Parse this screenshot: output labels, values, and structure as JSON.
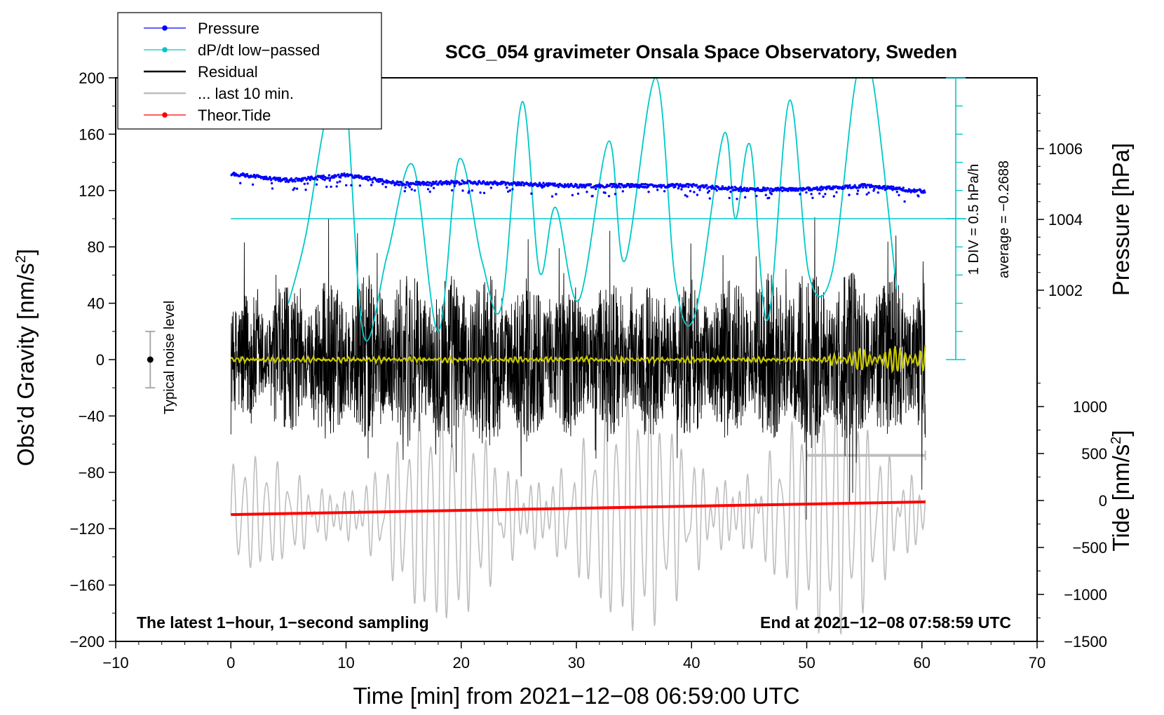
{
  "chart_data": {
    "type": "line",
    "title": "SCG_054 gravimeter Onsala Space Observatory, Sweden",
    "xlabel": "Time [min] from 2021−12−08 06:59:00 UTC",
    "ylabel_main": "Obs’d Gravity [nm/s",
    "ylabel_pressure": "Pressure [hPa]",
    "ylabel_tide": "Tide [nm/s",
    "superscript": "2",
    "ylabel_tide_close": "]",
    "ylabel_main_close": "]",
    "xlim": [
      -10,
      70
    ],
    "ylim_gravity": [
      -200,
      200
    ],
    "pressure_ylim": [
      1000,
      1008
    ],
    "tide_ylim": [
      -1500,
      1500
    ],
    "x_ticks": [
      -10,
      0,
      10,
      20,
      30,
      40,
      50,
      60,
      70
    ],
    "x_tick_labels": [
      "−10",
      "0",
      "10",
      "20",
      "30",
      "40",
      "50",
      "60",
      "70"
    ],
    "y_ticks": [
      -200,
      -160,
      -120,
      -80,
      -40,
      0,
      40,
      80,
      120,
      160,
      200
    ],
    "y_tick_labels": [
      "−200",
      "−160",
      "−120",
      "−80",
      "−40",
      "0",
      "40",
      "80",
      "120",
      "160",
      "200"
    ],
    "pressure_ticks": [
      1002,
      1004,
      1006
    ],
    "pressure_tick_labels": [
      "1002",
      "1004",
      "1006"
    ],
    "tide_ticks": [
      -1500,
      -1000,
      -500,
      0,
      500,
      1000
    ],
    "tide_tick_labels": [
      "−1500",
      "−1000",
      "−500",
      "0",
      "500",
      "1000"
    ],
    "legend": [
      {
        "label": "Pressure",
        "color": "#0000ff",
        "marker": true
      },
      {
        "label": "dP/dt low−passed",
        "color": "#00c8c8",
        "marker": true
      },
      {
        "label": "Residual",
        "color": "#000000",
        "marker": false
      },
      {
        "label": "... last 10 min.",
        "color": "#bebebe",
        "marker": false
      },
      {
        "label": "Theor.Tide",
        "color": "#ff0000",
        "marker": true
      }
    ],
    "dpdt_annotation": [
      "1 DIV = 0.5 hPa/h",
      "average = −0.2688"
    ],
    "noise_label": "Typical noise level",
    "noise_bar": {
      "x": -7,
      "center": 0,
      "half_range": 20
    },
    "bottom_left_text": "The latest 1−hour, 1−second sampling",
    "bottom_right_text": "End at 2021−12−08 07:58:59 UTC",
    "colors": {
      "pressure": "#0000ff",
      "dpdt": "#00c8c8",
      "residual": "#000000",
      "smoothed": "#c8c800",
      "last10": "#bebebe",
      "tide": "#ff0000"
    },
    "series": {
      "pressure": {
        "name": "Pressure",
        "unit": "hPa",
        "x": [
          0,
          5,
          10,
          15,
          20,
          25,
          30,
          35,
          40,
          45,
          50,
          55,
          60
        ],
        "values": [
          1005.3,
          1005.1,
          1005.25,
          1005.0,
          1005.05,
          1005.0,
          1004.95,
          1004.95,
          1004.95,
          1004.85,
          1004.85,
          1004.95,
          1004.8
        ]
      },
      "dpdt": {
        "name": "dP/dt low−passed",
        "x": [
          5,
          6.5,
          8.2,
          9.8,
          11.5,
          13.6,
          15.8,
          18,
          19.8,
          21.8,
          23.5,
          25.3,
          26.8,
          28.2,
          30.2,
          32.8,
          34.2,
          36.9,
          38.6,
          40.3,
          42.8,
          43.8,
          45.1,
          46.6,
          48.5,
          50.2,
          52.2,
          54.3,
          55.7,
          57.8
        ],
        "gravity_values": [
          40,
          88,
          170,
          205,
          18,
          75,
          138,
          20,
          142,
          70,
          38,
          183,
          62,
          108,
          42,
          155,
          70,
          200,
          55,
          32,
          160,
          100,
          152,
          28,
          184,
          60,
          62,
          200,
          200,
          50
        ]
      },
      "residual": {
        "name": "Residual",
        "x": [
          0,
          60.3
        ],
        "noise_envelope_nm_s2": [
          [
            0,
            45
          ],
          [
            10,
            60
          ],
          [
            20,
            65
          ],
          [
            30,
            55
          ],
          [
            40,
            55
          ],
          [
            50,
            65
          ],
          [
            60,
            60
          ]
        ]
      },
      "last10": {
        "name": "... last 10 min.",
        "x": [
          0,
          60.3
        ],
        "amplitude_nm_s2": [
          [
            0,
            30
          ],
          [
            20,
            70
          ],
          [
            40,
            70
          ],
          [
            60,
            70
          ]
        ],
        "mean": -110,
        "level_segment": {
          "x": [
            50,
            60.3
          ],
          "y": -68
        }
      },
      "tide": {
        "name": "Theor.Tide",
        "unit": "nm/s2",
        "x": [
          0,
          60.3
        ],
        "values": [
          -150,
          -15
        ]
      }
    }
  }
}
